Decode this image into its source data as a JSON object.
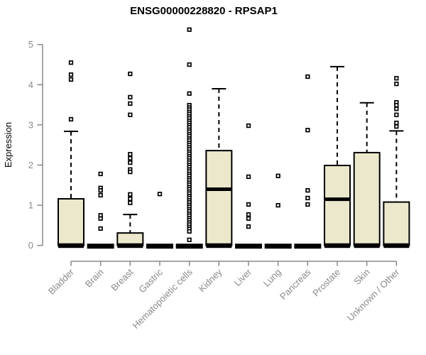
{
  "title": "ENSG00000228820 - RPSAP1",
  "chart_data": {
    "type": "box",
    "title": "ENSG00000228820 - RPSAP1",
    "xlabel": "",
    "ylabel": "Expression",
    "ylim": [
      0,
      5
    ],
    "yticks": [
      0,
      1,
      2,
      3,
      4,
      5
    ],
    "grid": "off",
    "legend": "none",
    "colors": {
      "box_fill": "#ece8cc",
      "box_border": "#000000",
      "median": "#000000",
      "whisker": "#000000",
      "axis": "#888888",
      "tick_label": "#8a8a8a",
      "title": "#000000"
    },
    "categories": [
      "Bladder",
      "Brain",
      "Breast",
      "Gastric",
      "Hematopoietic cells",
      "Kidney",
      "Liver",
      "Lung",
      "Pancreas",
      "Prostate",
      "Skin",
      "Unknown / Other"
    ],
    "boxes": [
      {
        "category": "Bladder",
        "q1": 0,
        "median": 0.03,
        "q3": 1.16,
        "whisker_low": 0,
        "whisker_high": 2.84,
        "outliers": [
          4.55,
          4.25,
          4.13,
          3.14
        ]
      },
      {
        "category": "Brain",
        "q1": 0,
        "median": 0,
        "q3": 0,
        "whisker_low": 0,
        "whisker_high": 0,
        "outliers": [
          1.78,
          1.43,
          1.37,
          1.25,
          0.75,
          0.67,
          0.42
        ]
      },
      {
        "category": "Breast",
        "q1": 0,
        "median": 0.03,
        "q3": 0.31,
        "whisker_low": 0,
        "whisker_high": 0.77,
        "outliers": [
          4.27,
          3.69,
          3.53,
          3.25,
          2.27,
          2.17,
          2.06,
          1.89,
          1.83,
          1.27,
          1.16,
          1.06
        ]
      },
      {
        "category": "Gastric",
        "q1": 0,
        "median": 0,
        "q3": 0,
        "whisker_low": 0,
        "whisker_high": 0,
        "outliers": [
          1.28
        ]
      },
      {
        "category": "Hematopoietic cells",
        "q1": 0,
        "median": 0,
        "q3": 0,
        "whisker_low": 0,
        "whisker_high": 0,
        "outliers": [
          5.37,
          4.5,
          3.78,
          3.49,
          3.43,
          3.38,
          3.32,
          3.27,
          3.21,
          3.16,
          3.1,
          3.05,
          2.99,
          2.94,
          2.88,
          2.83,
          2.77,
          2.72,
          2.66,
          2.61,
          2.55,
          2.5,
          2.44,
          2.39,
          2.33,
          2.28,
          2.22,
          2.17,
          2.11,
          2.06,
          2.0,
          1.95,
          1.89,
          1.84,
          1.78,
          1.73,
          1.67,
          1.62,
          1.56,
          1.51,
          1.45,
          1.4,
          1.34,
          1.29,
          1.23,
          1.18,
          1.12,
          1.07,
          1.01,
          0.96,
          0.9,
          0.85,
          0.79,
          0.74,
          0.68,
          0.63,
          0.57,
          0.52,
          0.46,
          0.41,
          0.35,
          0.14
        ]
      },
      {
        "category": "Kidney",
        "q1": 0,
        "median": 1.4,
        "q3": 2.36,
        "whisker_low": 0,
        "whisker_high": 3.9,
        "outliers": []
      },
      {
        "category": "Liver",
        "q1": 0,
        "median": 0,
        "q3": 0,
        "whisker_low": 0,
        "whisker_high": 0,
        "outliers": [
          2.98,
          1.71,
          1.02,
          0.77,
          0.67,
          0.47
        ]
      },
      {
        "category": "Lung",
        "q1": 0,
        "median": 0,
        "q3": 0,
        "whisker_low": 0,
        "whisker_high": 0,
        "outliers": [
          1.73,
          1.0
        ]
      },
      {
        "category": "Pancreas",
        "q1": 0,
        "median": 0,
        "q3": 0,
        "whisker_low": 0,
        "whisker_high": 0,
        "outliers": [
          4.2,
          2.87,
          1.37,
          1.18,
          1.02
        ]
      },
      {
        "category": "Prostate",
        "q1": 0,
        "median": 1.15,
        "q3": 1.99,
        "whisker_low": 0,
        "whisker_high": 4.45,
        "outliers": []
      },
      {
        "category": "Skin",
        "q1": 0,
        "median": 0.03,
        "q3": 2.31,
        "whisker_low": 0,
        "whisker_high": 3.55,
        "outliers": []
      },
      {
        "category": "Unknown / Other",
        "q1": 0,
        "median": 0.03,
        "q3": 1.08,
        "whisker_low": 0,
        "whisker_high": 2.85,
        "outliers": [
          4.16,
          4.02,
          3.56,
          3.49,
          3.4,
          3.25,
          3.05,
          2.96
        ]
      }
    ]
  }
}
